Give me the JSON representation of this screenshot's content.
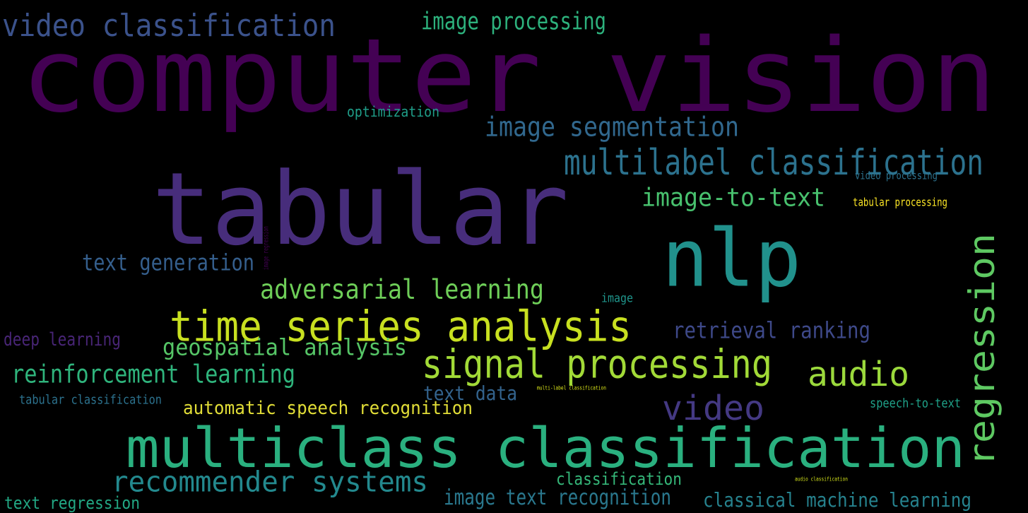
{
  "background_color": "#000000",
  "colormap": "viridis",
  "words": [
    {
      "text": "computer vision",
      "color": "#440154"
    },
    {
      "text": "tabular",
      "color": "#472d7b"
    },
    {
      "text": "nlp",
      "color": "#21918c"
    },
    {
      "text": "multiclass classification",
      "color": "#2ab07f"
    },
    {
      "text": "time series analysis",
      "color": "#c8e020"
    },
    {
      "text": "signal processing",
      "color": "#a2da37"
    },
    {
      "text": "regression",
      "color": "#5ec962"
    },
    {
      "text": "video classification",
      "color": "#3b528b"
    },
    {
      "text": "multilabel classification",
      "color": "#2c728e"
    },
    {
      "text": "image segmentation",
      "color": "#31688e"
    },
    {
      "text": "video",
      "color": "#443983"
    },
    {
      "text": "audio",
      "color": "#9bd93c"
    },
    {
      "text": "recommender systems",
      "color": "#23898e"
    },
    {
      "text": "adversarial learning",
      "color": "#6ece58"
    },
    {
      "text": "image-to-text",
      "color": "#48c16e"
    },
    {
      "text": "geospatial analysis",
      "color": "#56c667"
    },
    {
      "text": "reinforcement learning",
      "color": "#2fb47c"
    },
    {
      "text": "retrieval ranking",
      "color": "#3e4989"
    },
    {
      "text": "image processing",
      "color": "#2db27d"
    },
    {
      "text": "text generation",
      "color": "#355f8d"
    },
    {
      "text": "automatic speech recognition",
      "color": "#e1dd37"
    },
    {
      "text": "classical machine learning",
      "color": "#26828e"
    },
    {
      "text": "image text recognition",
      "color": "#2a788e"
    },
    {
      "text": "text data",
      "color": "#33638d"
    },
    {
      "text": "classification",
      "color": "#35b779"
    },
    {
      "text": "text regression",
      "color": "#22a884"
    },
    {
      "text": "deep learning",
      "color": "#482576"
    },
    {
      "text": "optimization",
      "color": "#1f9e89"
    },
    {
      "text": "tabular classification",
      "color": "#2c728e"
    },
    {
      "text": "speech-to-text",
      "color": "#1fa188"
    },
    {
      "text": "image",
      "color": "#1f958b"
    },
    {
      "text": "video processing",
      "color": "#2c728e"
    },
    {
      "text": "tabular processing",
      "color": "#fde725"
    },
    {
      "text": "multi-label classification",
      "color": "#d8e219"
    },
    {
      "text": "audio classification",
      "color": "#d2e21b"
    },
    {
      "text": "image regression",
      "color": "#440154"
    }
  ]
}
